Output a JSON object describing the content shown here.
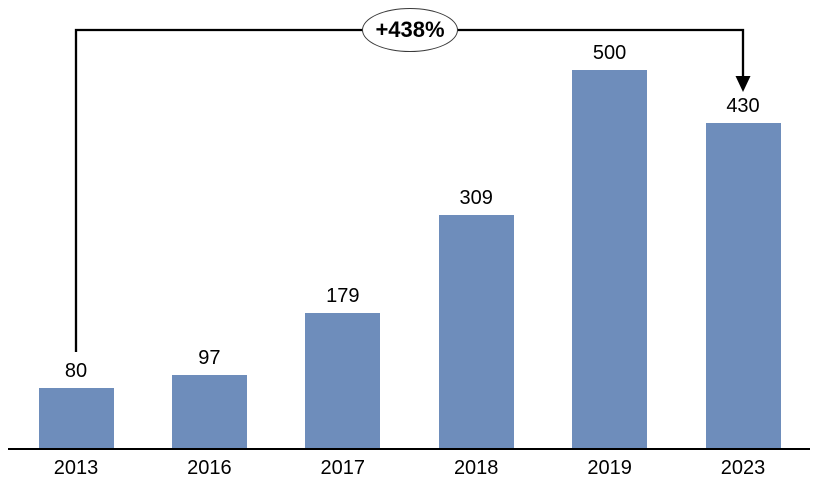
{
  "chart_data": {
    "type": "bar",
    "categories": [
      "2013",
      "2016",
      "2017",
      "2018",
      "2019",
      "2023"
    ],
    "values": [
      80,
      97,
      179,
      309,
      500,
      430
    ],
    "title": "",
    "xlabel": "",
    "ylabel": "",
    "bar_color": "#6e8dbb",
    "axis_color": "#000000",
    "label_color": "#000000",
    "grid": false,
    "legend": false,
    "data_labels_visible": true,
    "annotation": {
      "label": "+438%",
      "from_category": "2013",
      "to_category": "2023",
      "arrow_color": "#000000"
    }
  }
}
